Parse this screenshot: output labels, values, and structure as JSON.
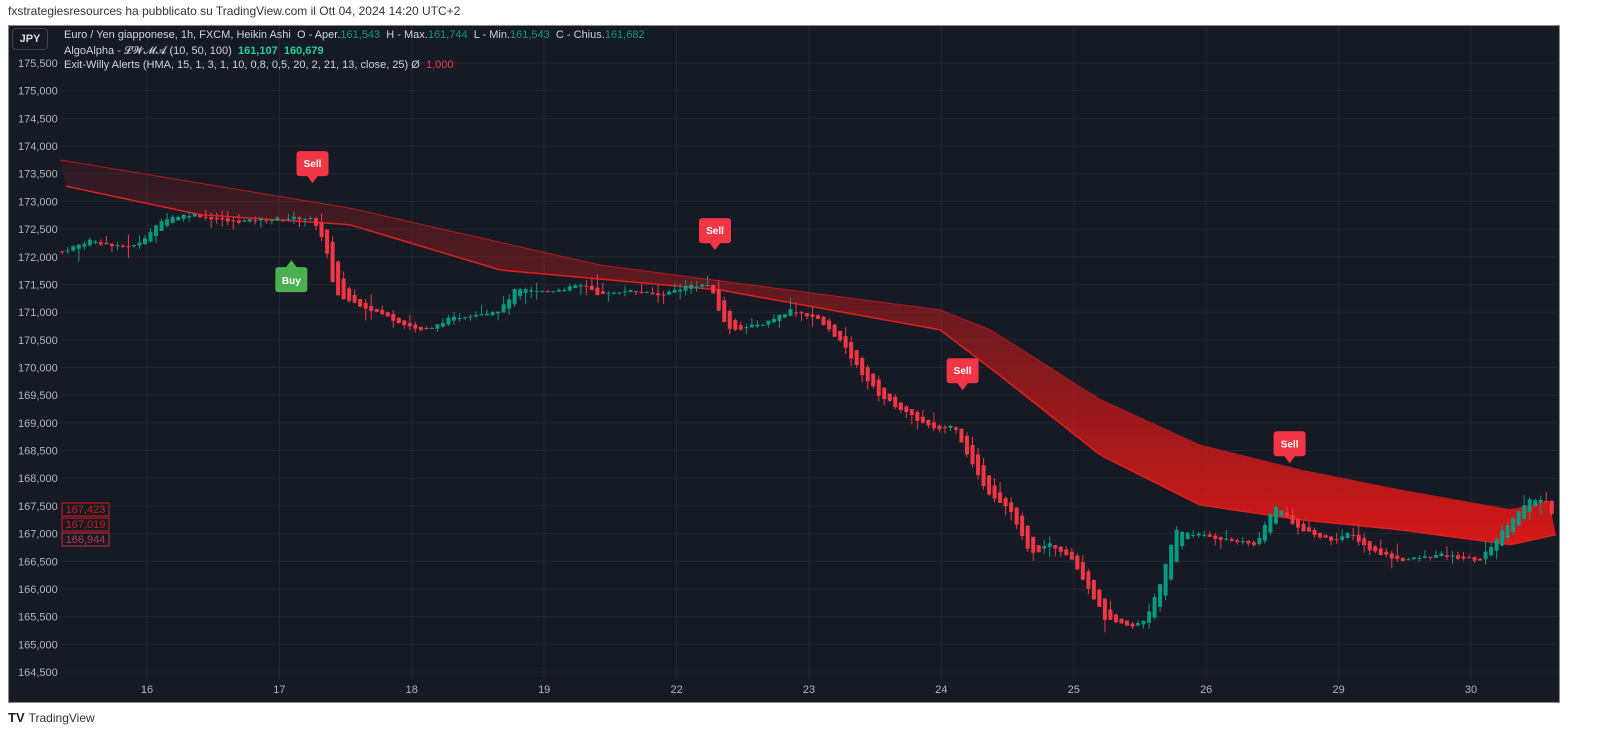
{
  "header": {
    "publish_text": "fxstrategiesresources ha pubblicato su TradingView.com il Ott 04, 2024 14:20 UTC+2"
  },
  "symbol_badge": "JPY",
  "legend": {
    "main": {
      "title": "Euro / Yen giapponese, 1h, FXCM, Heikin Ashi",
      "o_label": "O - Aper.",
      "o": "161,543",
      "h_label": "H - Max.",
      "h": "161,744",
      "l_label": "L - Min.",
      "l": "161,543",
      "c_label": "C - Chius.",
      "c": "161,682"
    },
    "algo": {
      "title": "AlgoAlpha - 𝓛𝓦𝓜𝓐 (10, 50, 100)",
      "v1": "161,107",
      "v2": "160,679"
    },
    "exit": {
      "title": "Exit-Willy Alerts (HMA, 15, 1, 3, 1, 10, 0,8, 0,5, 20, 2, 21, 13, close, 25)  Ø",
      "v": "1,000"
    }
  },
  "footer": {
    "brand": "TradingView"
  },
  "colors": {
    "up": "#089981",
    "down": "#f23645",
    "band": "#d11a1a",
    "bg": "#161a25"
  },
  "chart_data": {
    "type": "candlestick",
    "yticks": [
      "175,500",
      "175,000",
      "174,500",
      "174,000",
      "173,500",
      "173,000",
      "172,500",
      "172,000",
      "171,500",
      "171,000",
      "170,500",
      "170,000",
      "169,500",
      "169,000",
      "168,500",
      "168,000",
      "167,500",
      "167,000",
      "166,500",
      "166,000",
      "165,500",
      "165,000",
      "164,500"
    ],
    "ylim": [
      164500,
      175500
    ],
    "xticks": [
      "16",
      "17",
      "18",
      "19",
      "22",
      "23",
      "24",
      "25",
      "26",
      "29",
      "30"
    ],
    "price_labels": [
      "167,423",
      "167,019",
      "166,944"
    ],
    "close_path": [
      [
        -0.64,
        172100
      ],
      [
        -0.43,
        172300
      ],
      [
        -0.24,
        172180
      ],
      [
        -0.09,
        172200
      ],
      [
        0.14,
        172700
      ],
      [
        0.33,
        172770
      ],
      [
        0.63,
        172630
      ],
      [
        1.08,
        172700
      ],
      [
        1.23,
        172700
      ],
      [
        1.34,
        172300
      ],
      [
        1.42,
        171300
      ],
      [
        1.61,
        171130
      ],
      [
        1.87,
        170860
      ],
      [
        2.05,
        170680
      ],
      [
        2.14,
        170680
      ],
      [
        2.25,
        170860
      ],
      [
        2.44,
        170950
      ],
      [
        2.67,
        171040
      ],
      [
        2.78,
        171400
      ],
      [
        3.01,
        171370
      ],
      [
        3.31,
        171490
      ],
      [
        3.42,
        171300
      ],
      [
        3.61,
        171400
      ],
      [
        3.87,
        171300
      ],
      [
        4.1,
        171490
      ],
      [
        4.25,
        171490
      ],
      [
        4.33,
        170950
      ],
      [
        4.4,
        170680
      ],
      [
        4.63,
        170770
      ],
      [
        4.86,
        171040
      ],
      [
        5.05,
        170900
      ],
      [
        5.23,
        170500
      ],
      [
        5.38,
        169950
      ],
      [
        5.53,
        169500
      ],
      [
        5.76,
        169140
      ],
      [
        5.95,
        168870
      ],
      [
        6.1,
        168960
      ],
      [
        6.18,
        168510
      ],
      [
        6.33,
        167790
      ],
      [
        6.52,
        167430
      ],
      [
        6.67,
        166610
      ],
      [
        6.82,
        166800
      ],
      [
        6.97,
        166610
      ],
      [
        7.12,
        165980
      ],
      [
        7.24,
        165440
      ],
      [
        7.43,
        165300
      ],
      [
        7.54,
        165440
      ],
      [
        7.66,
        166160
      ],
      [
        7.77,
        167060
      ],
      [
        7.96,
        166970
      ],
      [
        8.18,
        166880
      ],
      [
        8.37,
        166790
      ],
      [
        8.52,
        167520
      ],
      [
        8.71,
        167060
      ],
      [
        8.94,
        166880
      ],
      [
        9.09,
        167000
      ],
      [
        9.24,
        166700
      ],
      [
        9.47,
        166520
      ],
      [
        9.77,
        166610
      ],
      [
        10.07,
        166520
      ],
      [
        10.3,
        167250
      ],
      [
        10.45,
        167610
      ],
      [
        10.56,
        167610
      ],
      [
        10.64,
        167250
      ]
    ],
    "band_upper": [
      [
        -0.66,
        173750
      ],
      [
        1.53,
        172880
      ],
      [
        3.42,
        171850
      ],
      [
        5.99,
        171040
      ],
      [
        6.37,
        170680
      ],
      [
        7.2,
        169420
      ],
      [
        7.95,
        168600
      ],
      [
        8.71,
        168150
      ],
      [
        9.46,
        167790
      ],
      [
        10.3,
        167430
      ],
      [
        10.64,
        167610
      ]
    ],
    "band_lower": [
      [
        -0.66,
        173300
      ],
      [
        0.4,
        172760
      ],
      [
        1.53,
        172580
      ],
      [
        2.67,
        171760
      ],
      [
        4.33,
        171400
      ],
      [
        5.99,
        170680
      ],
      [
        6.44,
        169860
      ],
      [
        7.2,
        168420
      ],
      [
        7.95,
        167520
      ],
      [
        8.71,
        167250
      ],
      [
        9.46,
        167070
      ],
      [
        10.3,
        166800
      ],
      [
        10.64,
        166980
      ]
    ],
    "signals": [
      {
        "label": "Sell",
        "day": 1.25,
        "price": 173330
      },
      {
        "label": "Buy",
        "day": 1.09,
        "price": 171940
      },
      {
        "label": "Sell",
        "day": 4.29,
        "price": 172120
      },
      {
        "label": "Sell",
        "day": 6.16,
        "price": 169590
      },
      {
        "label": "Sell",
        "day": 8.63,
        "price": 168270
      }
    ]
  }
}
